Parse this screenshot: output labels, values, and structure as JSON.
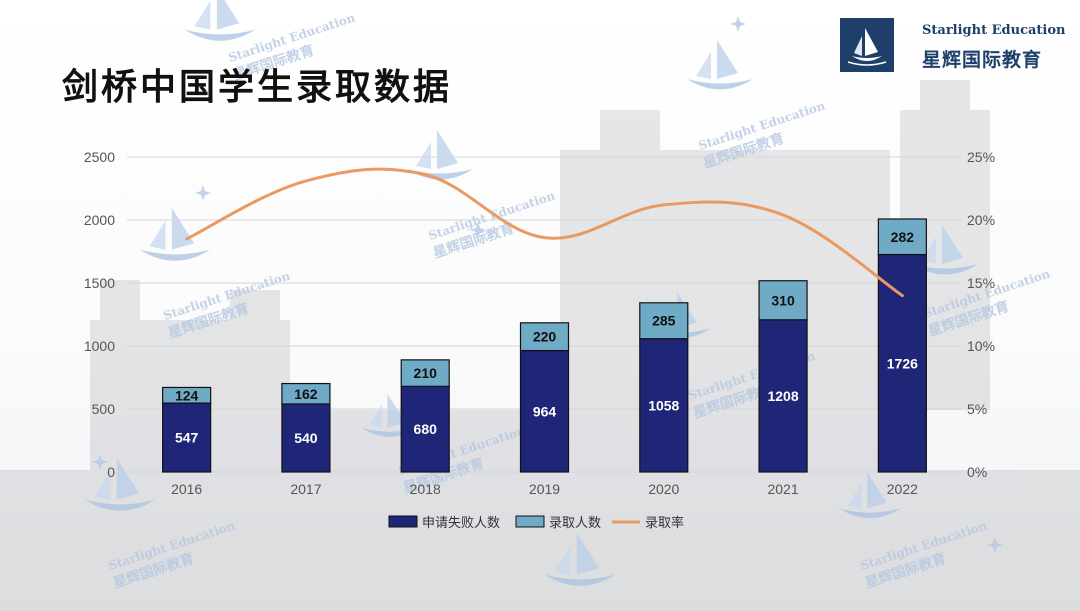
{
  "title": "剑桥中国学生录取数据",
  "brand": {
    "name_en": "Starlight Education",
    "name_cn": "星辉国际教育",
    "watermark_en": "Starlight Education",
    "watermark_cn": "星辉国际教育"
  },
  "colors": {
    "failed": "#1f2678",
    "admitted": "#6faac6",
    "rate": "#e99a62",
    "brand": "#1f3f6b"
  },
  "icons": [
    "sailboat-logo-icon",
    "sailboat-watermark-icon",
    "sparkle-icon"
  ],
  "chart_data": {
    "type": "bar",
    "stacked": true,
    "categories": [
      "2016",
      "2017",
      "2018",
      "2019",
      "2020",
      "2021",
      "2022"
    ],
    "series": [
      {
        "name": "申请失败人数",
        "type": "bar",
        "axis": "left",
        "values": [
          547,
          540,
          680,
          964,
          1058,
          1208,
          1726
        ]
      },
      {
        "name": "录取人数",
        "type": "bar",
        "axis": "left",
        "values": [
          124,
          162,
          210,
          220,
          285,
          310,
          282
        ]
      },
      {
        "name": "录取率",
        "type": "line",
        "axis": "right",
        "values": [
          0.185,
          0.231,
          0.236,
          0.186,
          0.212,
          0.204,
          0.14
        ]
      }
    ],
    "y_left": {
      "min": 0,
      "max": 2500,
      "ticks": [
        "0",
        "500",
        "1000",
        "1500",
        "2000",
        "2500"
      ]
    },
    "y_right": {
      "min": 0,
      "max": 0.25,
      "ticks": [
        "0%",
        "5%",
        "10%",
        "15%",
        "20%",
        "25%"
      ]
    },
    "grid": true,
    "legend_position": "bottom"
  }
}
